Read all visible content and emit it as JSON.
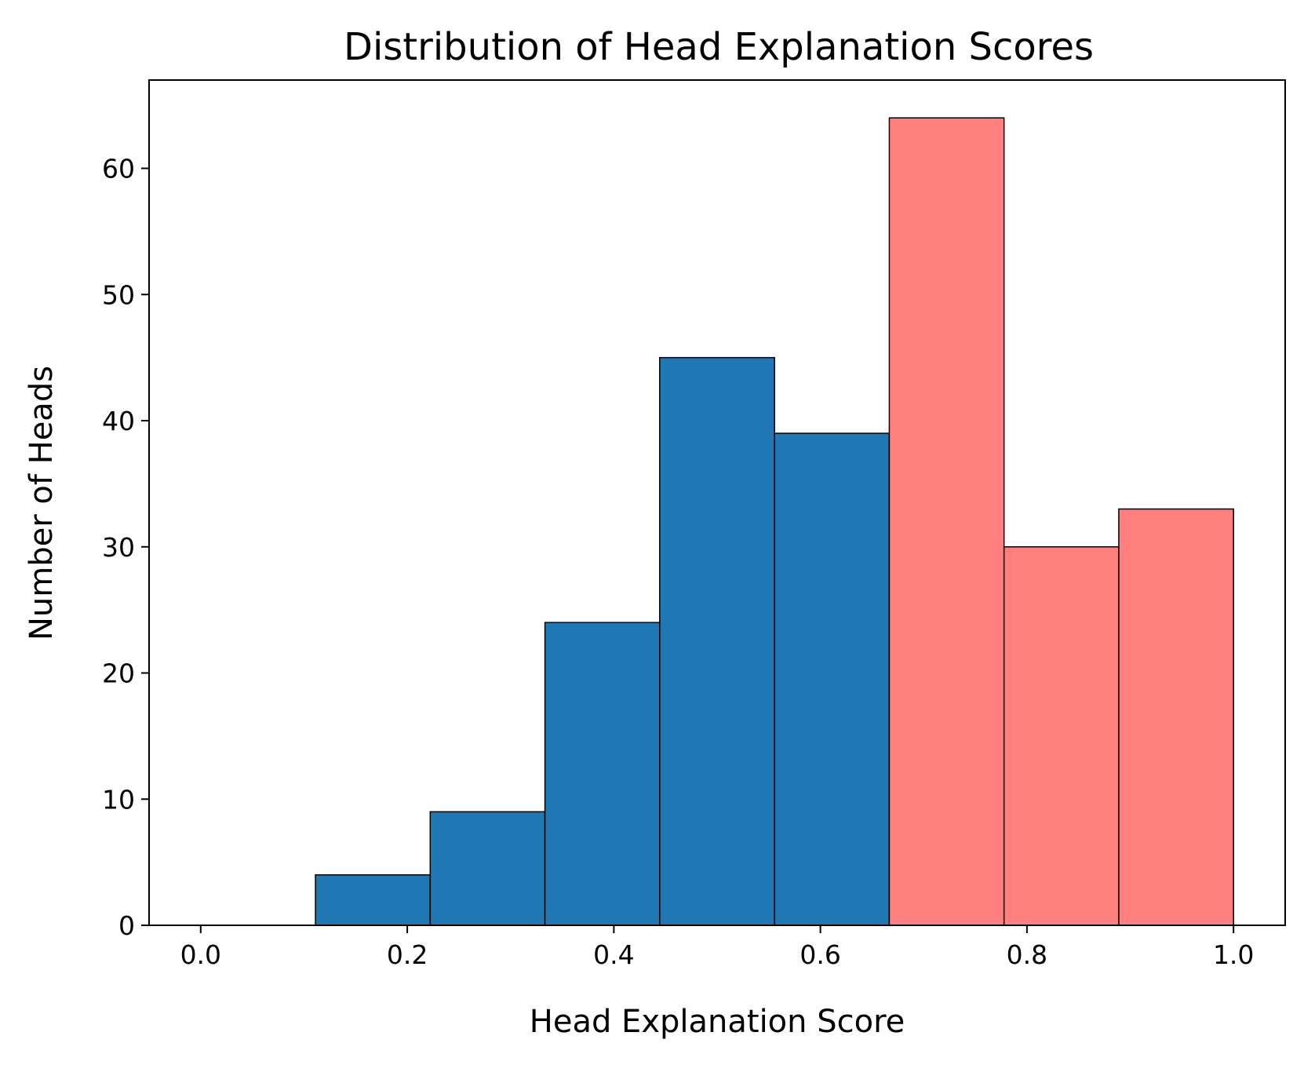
{
  "chart_data": {
    "type": "bar",
    "title": "Distribution of Head Explanation Scores",
    "xlabel": "Head Explanation Score",
    "ylabel": "Number of Heads",
    "xlim": [
      -0.05,
      1.05
    ],
    "ylim": [
      0,
      67
    ],
    "xticks": [
      {
        "value": 0.0,
        "label": "0.0"
      },
      {
        "value": 0.2,
        "label": "0.2"
      },
      {
        "value": 0.4,
        "label": "0.4"
      },
      {
        "value": 0.6,
        "label": "0.6"
      },
      {
        "value": 0.8,
        "label": "0.8"
      },
      {
        "value": 1.0,
        "label": "1.0"
      }
    ],
    "yticks": [
      {
        "value": 0,
        "label": "0"
      },
      {
        "value": 10,
        "label": "10"
      },
      {
        "value": 20,
        "label": "20"
      },
      {
        "value": 30,
        "label": "30"
      },
      {
        "value": 40,
        "label": "40"
      },
      {
        "value": 50,
        "label": "50"
      },
      {
        "value": 60,
        "label": "60"
      }
    ],
    "grid": false,
    "colors": {
      "low": "#1f77b4",
      "high": "#ff7f7f",
      "edge": "#000000"
    },
    "bins": [
      {
        "start": 0.0,
        "end": 0.1111,
        "count": 0,
        "group": "low"
      },
      {
        "start": 0.1111,
        "end": 0.2222,
        "count": 4,
        "group": "low"
      },
      {
        "start": 0.2222,
        "end": 0.3333,
        "count": 9,
        "group": "low"
      },
      {
        "start": 0.3333,
        "end": 0.4444,
        "count": 24,
        "group": "low"
      },
      {
        "start": 0.4444,
        "end": 0.5556,
        "count": 45,
        "group": "low"
      },
      {
        "start": 0.5556,
        "end": 0.6667,
        "count": 39,
        "group": "low"
      },
      {
        "start": 0.6667,
        "end": 0.7778,
        "count": 64,
        "group": "high"
      },
      {
        "start": 0.7778,
        "end": 0.8889,
        "count": 30,
        "group": "high"
      },
      {
        "start": 0.8889,
        "end": 1.0,
        "count": 33,
        "group": "high"
      }
    ]
  }
}
